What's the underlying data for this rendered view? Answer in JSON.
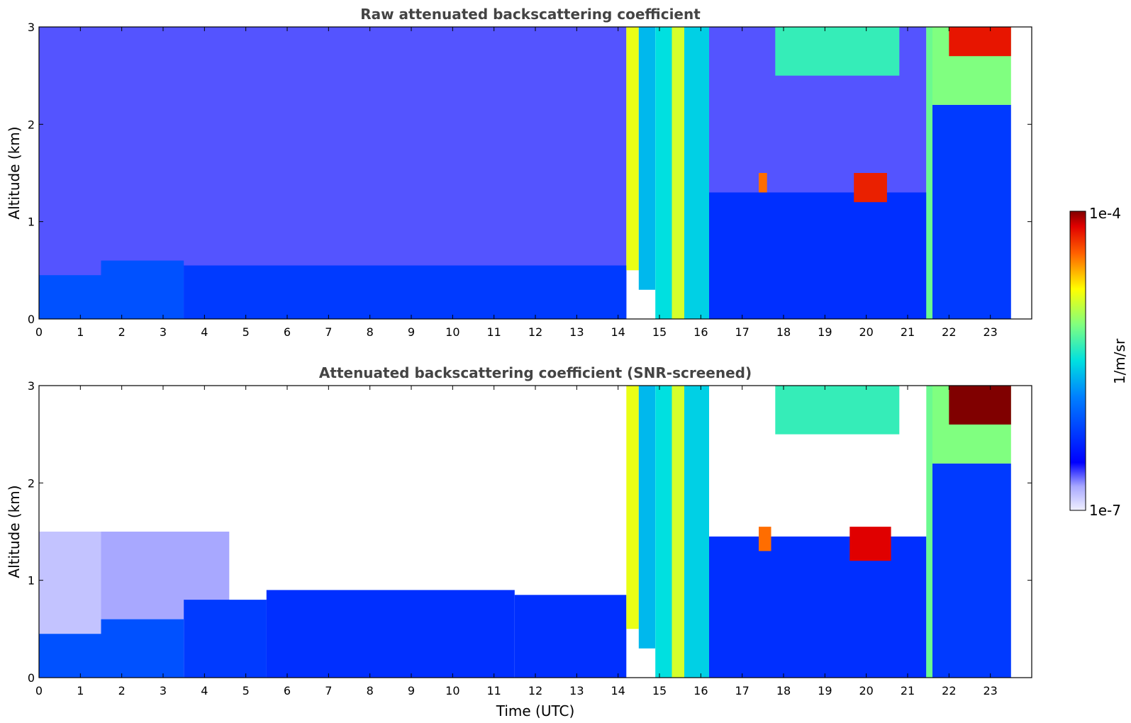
{
  "chart_data": [
    {
      "type": "heatmap",
      "title": "Raw attenuated backscattering coefficient",
      "xlabel": "",
      "ylabel": "Altitude (km)",
      "xlim": [
        0,
        24
      ],
      "ylim": [
        0,
        3
      ],
      "xticks": [
        "0",
        "1",
        "2",
        "3",
        "4",
        "5",
        "6",
        "7",
        "8",
        "9",
        "10",
        "11",
        "12",
        "13",
        "14",
        "15",
        "16",
        "17",
        "18",
        "19",
        "20",
        "21",
        "22",
        "23"
      ],
      "yticks": [
        "0",
        "1",
        "2",
        "3"
      ],
      "data_end_hour": 23.5,
      "layers": [
        {
          "x0": 0,
          "x1": 14.2,
          "y0": 0,
          "y1": 3,
          "level": 0.12
        },
        {
          "x0": 0,
          "x1": 1.5,
          "y0": 0,
          "y1": 0.45,
          "level": 0.3
        },
        {
          "x0": 1.5,
          "x1": 3.5,
          "y0": 0,
          "y1": 0.6,
          "level": 0.3
        },
        {
          "x0": 3.5,
          "x1": 14.2,
          "y0": 0,
          "y1": 0.55,
          "level": 0.26
        },
        {
          "x0": 14.2,
          "x1": 14.5,
          "y0": 0.5,
          "y1": 3,
          "level": 0.72
        },
        {
          "x0": 14.5,
          "x1": 14.9,
          "y0": 0.3,
          "y1": 3,
          "level": 0.45
        },
        {
          "x0": 14.9,
          "x1": 15.3,
          "y0": 0,
          "y1": 3,
          "level": 0.5
        },
        {
          "x0": 15.3,
          "x1": 15.6,
          "y0": 0,
          "y1": 3,
          "level": 0.7
        },
        {
          "x0": 15.6,
          "x1": 16.2,
          "y0": 0,
          "y1": 3,
          "level": 0.48
        },
        {
          "x0": 16.2,
          "x1": 21.45,
          "y0": 0,
          "y1": 3,
          "level": 0.12
        },
        {
          "x0": 16.2,
          "x1": 21.45,
          "y0": 0,
          "y1": 1.3,
          "level": 0.24
        },
        {
          "x0": 17.4,
          "x1": 17.6,
          "y0": 1.3,
          "y1": 1.5,
          "level": 0.85
        },
        {
          "x0": 19.7,
          "x1": 20.5,
          "y0": 1.2,
          "y1": 1.5,
          "level": 0.92
        },
        {
          "x0": 17.8,
          "x1": 20.8,
          "y0": 2.5,
          "y1": 3,
          "level": 0.55
        },
        {
          "x0": 21.45,
          "x1": 21.6,
          "y0": 0,
          "y1": 3,
          "level": 0.6
        },
        {
          "x0": 21.6,
          "x1": 23.5,
          "y0": 0,
          "y1": 2.2,
          "level": 0.26
        },
        {
          "x0": 21.6,
          "x1": 23.5,
          "y0": 2.2,
          "y1": 3,
          "level": 0.62
        },
        {
          "x0": 22.0,
          "x1": 23.5,
          "y0": 2.7,
          "y1": 3,
          "level": 0.93
        }
      ]
    },
    {
      "type": "heatmap",
      "title": "Attenuated backscattering coefficient (SNR-screened)",
      "xlabel": "Time (UTC)",
      "ylabel": "Altitude (km)",
      "xlim": [
        0,
        24
      ],
      "ylim": [
        0,
        3
      ],
      "xticks": [
        "0",
        "1",
        "2",
        "3",
        "4",
        "5",
        "6",
        "7",
        "8",
        "9",
        "10",
        "11",
        "12",
        "13",
        "14",
        "15",
        "16",
        "17",
        "18",
        "19",
        "20",
        "21",
        "22",
        "23"
      ],
      "yticks": [
        "0",
        "1",
        "2",
        "3"
      ],
      "data_end_hour": 23.5,
      "layers": [
        {
          "x0": 0,
          "x1": 1.5,
          "y0": 0.45,
          "y1": 1.5,
          "level": 0.05
        },
        {
          "x0": 1.5,
          "x1": 4.6,
          "y0": 0.6,
          "y1": 1.5,
          "level": 0.08
        },
        {
          "x0": 0,
          "x1": 1.5,
          "y0": 0,
          "y1": 0.45,
          "level": 0.3
        },
        {
          "x0": 1.5,
          "x1": 3.5,
          "y0": 0,
          "y1": 0.6,
          "level": 0.3
        },
        {
          "x0": 3.5,
          "x1": 5.5,
          "y0": 0,
          "y1": 0.8,
          "level": 0.26
        },
        {
          "x0": 5.5,
          "x1": 11.5,
          "y0": 0,
          "y1": 0.9,
          "level": 0.24
        },
        {
          "x0": 11.5,
          "x1": 14.2,
          "y0": 0,
          "y1": 0.85,
          "level": 0.24
        },
        {
          "x0": 14.2,
          "x1": 14.5,
          "y0": 0.5,
          "y1": 3,
          "level": 0.72
        },
        {
          "x0": 14.5,
          "x1": 14.9,
          "y0": 0.3,
          "y1": 3,
          "level": 0.45
        },
        {
          "x0": 14.9,
          "x1": 15.3,
          "y0": 0,
          "y1": 3,
          "level": 0.5
        },
        {
          "x0": 15.3,
          "x1": 15.6,
          "y0": 0,
          "y1": 3,
          "level": 0.7
        },
        {
          "x0": 15.6,
          "x1": 16.2,
          "y0": 0,
          "y1": 3,
          "level": 0.48
        },
        {
          "x0": 16.2,
          "x1": 21.45,
          "y0": 0,
          "y1": 1.45,
          "level": 0.24
        },
        {
          "x0": 17.4,
          "x1": 17.7,
          "y0": 1.3,
          "y1": 1.55,
          "level": 0.85
        },
        {
          "x0": 19.6,
          "x1": 20.6,
          "y0": 1.2,
          "y1": 1.55,
          "level": 0.95
        },
        {
          "x0": 17.8,
          "x1": 20.8,
          "y0": 2.5,
          "y1": 3,
          "level": 0.55
        },
        {
          "x0": 21.45,
          "x1": 21.6,
          "y0": 0,
          "y1": 3,
          "level": 0.6
        },
        {
          "x0": 21.6,
          "x1": 23.5,
          "y0": 0,
          "y1": 2.2,
          "level": 0.26
        },
        {
          "x0": 21.6,
          "x1": 23.5,
          "y0": 2.2,
          "y1": 3,
          "level": 0.62
        },
        {
          "x0": 22.0,
          "x1": 23.5,
          "y0": 2.6,
          "y1": 3,
          "level": 1.0
        }
      ]
    }
  ],
  "colorbar": {
    "label": "1/m/sr",
    "max_label": "1e-4",
    "min_label": "1e-7",
    "colormap": "jet"
  }
}
